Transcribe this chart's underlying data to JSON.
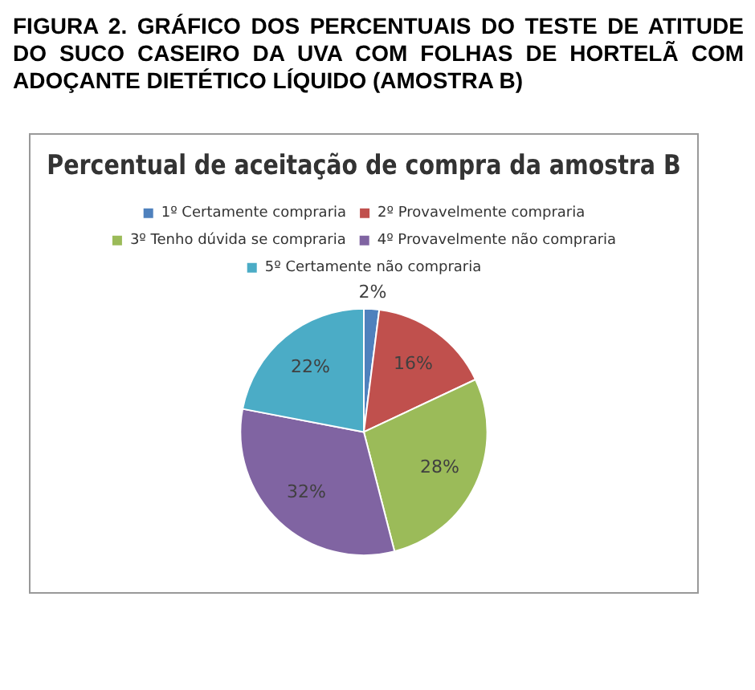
{
  "chart_data": {
    "type": "pie",
    "title": "FIGURA 2. GRÁFICO DOS PERCENTUAIS DO TESTE DE ATITUDE DO SUCO CASEIRO DA UVA COM FOLHAS DE HORTELÃ COM ADOÇANTE DIETÉTICO LÍQUIDO (AMOSTRA B)",
    "subtitle": "Percentual de aceitação de compra da amostra B",
    "categories": [
      "1º Certamente compraria",
      "2º Provavelmente compraria",
      "3º Tenho dúvida se compraria",
      "4º Provavelmente não compraria",
      "5º Certamente não compraria"
    ],
    "values": [
      2,
      16,
      28,
      32,
      22
    ],
    "value_labels": [
      "2%",
      "16%",
      "28%",
      "32%",
      "22%"
    ],
    "colors": [
      "#4f81bd",
      "#c0504d",
      "#9bbb59",
      "#8064a2",
      "#4bacc6"
    ],
    "legend": "top"
  }
}
